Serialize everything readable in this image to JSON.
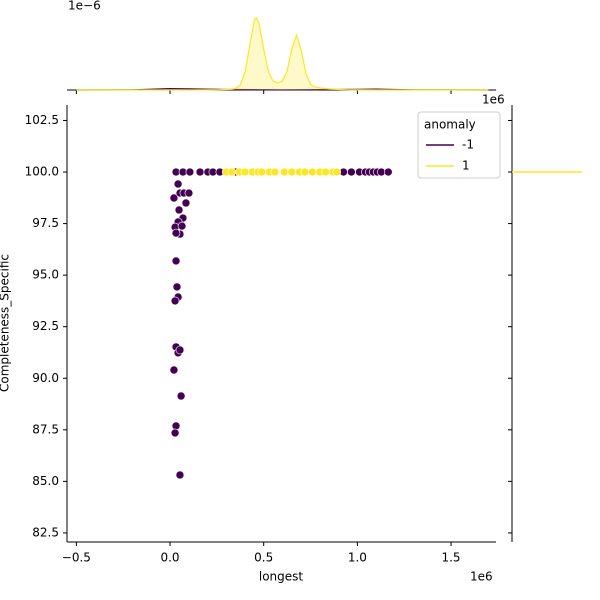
{
  "chart_data": [
    {
      "type": "scatter",
      "xlabel": "longest",
      "ylabel": "Completeness_Specific",
      "x_offset": "1e6",
      "corner_offset": "1e6",
      "xlim": [
        -0.55,
        1.74
      ],
      "ylim": [
        82.06,
        103.25
      ],
      "xticks": [
        {
          "value": -0.5,
          "label": "−0.5"
        },
        {
          "value": 0,
          "label": "0.0"
        },
        0.5,
        {
          "value": 1,
          "label": "1.0"
        },
        1.5
      ],
      "yticks": [
        82.5,
        {
          "value": 85,
          "label": "85.0"
        },
        87.5,
        {
          "value": 90,
          "label": "90.0"
        },
        92.5,
        {
          "value": 95,
          "label": "95.0"
        },
        97.5,
        {
          "value": 100,
          "label": "100.0"
        },
        102.5
      ],
      "legend_title": "anomaly",
      "legend": "upper right",
      "series": [
        {
          "name": "-1",
          "color": "#440154",
          "x": [
            0.021,
            0.032,
            0.043,
            0.053,
            0.074,
            0.048,
            0.085,
            0.069,
            0.101,
            0.043,
            0.027,
            0.053,
            0.064,
            0.032,
            0.032,
            0.037,
            0.043,
            0.027,
            0.032,
            0.043,
            0.053,
            0.021,
            0.059,
            0.032,
            0.027,
            0.053,
            0.069,
            0.106,
            0.16,
            0.202,
            0.229,
            0.266,
            0.351,
            0.926,
            0.968,
            1.011,
            1.043,
            1.064,
            1.085,
            1.106,
            1.128,
            1.165
          ],
          "values": [
            98.74,
            100,
            99.42,
            98.98,
            98.98,
            98.16,
            98.5,
            97.77,
            98.98,
            97.58,
            97.33,
            96.99,
            97.38,
            97.04,
            95.69,
            94.43,
            93.94,
            93.75,
            91.52,
            91.23,
            91.37,
            90.4,
            89.14,
            87.69,
            87.35,
            85.31,
            100,
            100,
            100,
            100,
            100,
            100,
            100,
            100,
            100,
            100,
            100,
            100,
            100,
            100,
            100,
            100
          ]
        },
        {
          "name": "1",
          "color": "#fde725",
          "x": [
            0.3,
            0.33,
            0.37,
            0.4,
            0.44,
            0.47,
            0.49,
            0.53,
            0.56,
            0.61,
            0.65,
            0.69,
            0.72,
            0.76,
            0.8,
            0.83,
            0.87,
            0.89
          ],
          "values": [
            100,
            100,
            100,
            100,
            100,
            100,
            100,
            100,
            100,
            100,
            100,
            100,
            100,
            100,
            100,
            100,
            100,
            100
          ]
        }
      ]
    },
    {
      "type": "kde",
      "y_offset": "1e−6",
      "ylim": [
        0,
        3.5
      ],
      "series": [
        {
          "color": "#440154",
          "x": [
            -0.5,
            -0.2,
            0,
            0.1,
            0.3,
            0.6,
            1.0,
            1.1,
            1.3,
            1.7
          ],
          "values": [
            0,
            0.005,
            0.06,
            0.05,
            0.02,
            0.01,
            0.03,
            0.04,
            0.01,
            0
          ]
        },
        {
          "color": "#fde725",
          "x": [
            -0.5,
            0.1,
            0.2,
            0.25,
            0.3,
            0.325,
            0.35,
            0.375,
            0.4,
            0.425,
            0.45,
            0.46,
            0.475,
            0.5,
            0.525,
            0.55,
            0.575,
            0.6,
            0.625,
            0.65,
            0.675,
            0.7,
            0.725,
            0.75,
            0.775,
            0.8,
            0.85,
            0.9,
            0.95,
            1.0,
            1.1,
            1.7
          ],
          "values": [
            0,
            0,
            0.003,
            0.01,
            0.02,
            0.03,
            0.07,
            0.22,
            0.78,
            1.94,
            3.03,
            3.17,
            2.93,
            1.78,
            0.79,
            0.39,
            0.31,
            0.39,
            0.83,
            1.8,
            2.4,
            1.74,
            0.73,
            0.25,
            0.13,
            0.09,
            0.047,
            0.021,
            0.008,
            0.003,
            0,
            0
          ]
        }
      ]
    },
    {
      "type": "hline",
      "color": "#fde725",
      "values": [
        100
      ]
    }
  ]
}
